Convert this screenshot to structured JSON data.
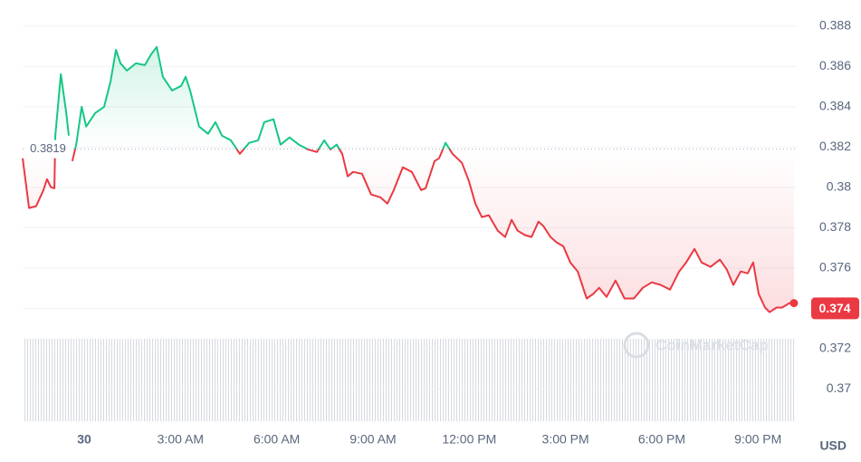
{
  "chart_data": {
    "type": "line",
    "currency": "USD",
    "watermark": "CoinMarketCap",
    "baseline": 0.3819,
    "current_price": 0.374,
    "up_color": "#16c784",
    "down_color": "#ea3943",
    "xlim": [
      -1.92,
      22.15
    ],
    "xticks": [
      {
        "value": 0,
        "label": "30"
      },
      {
        "value": 3,
        "label": "3:00 AM"
      },
      {
        "value": 6,
        "label": "6:00 AM"
      },
      {
        "value": 9,
        "label": "9:00 AM"
      },
      {
        "value": 12,
        "label": "12:00 PM"
      },
      {
        "value": 15,
        "label": "3:00 PM"
      },
      {
        "value": 18,
        "label": "6:00 PM"
      },
      {
        "value": 21,
        "label": "9:00 PM"
      }
    ],
    "ylim": [
      0.3684,
      0.3893
    ],
    "yticks": [
      0.37,
      0.372,
      0.374,
      0.376,
      0.378,
      0.38,
      0.382,
      0.384,
      0.386,
      0.388
    ],
    "grid": true,
    "x": [
      -1.92,
      -1.72,
      -1.5,
      -1.27,
      -1.16,
      -1.04,
      -0.93,
      -0.9,
      -0.73,
      -0.56,
      -0.48,
      -0.42,
      -0.37,
      -0.25,
      -0.08,
      0.06,
      0.34,
      0.62,
      0.82,
      0.99,
      1.13,
      1.33,
      1.61,
      1.89,
      2.09,
      2.26,
      2.45,
      2.74,
      3.02,
      3.16,
      3.3,
      3.58,
      3.86,
      4.09,
      4.29,
      4.57,
      4.85,
      5.14,
      5.42,
      5.61,
      5.9,
      6.12,
      6.4,
      6.69,
      6.97,
      7.25,
      7.48,
      7.67,
      7.87,
      8.04,
      8.21,
      8.38,
      8.66,
      8.94,
      9.23,
      9.45,
      9.65,
      9.93,
      10.21,
      10.5,
      10.64,
      10.92,
      11.06,
      11.26,
      11.48,
      11.77,
      11.99,
      12.19,
      12.39,
      12.61,
      12.89,
      13.12,
      13.32,
      13.51,
      13.74,
      13.94,
      14.16,
      14.31,
      14.53,
      14.73,
      14.93,
      15.15,
      15.38,
      15.66,
      15.86,
      16.05,
      16.28,
      16.56,
      16.84,
      17.13,
      17.41,
      17.69,
      17.97,
      18.26,
      18.54,
      18.76,
      19.02,
      19.24,
      19.52,
      19.81,
      20.03,
      20.23,
      20.46,
      20.68,
      20.85,
      21.02,
      21.22,
      21.36,
      21.58,
      21.75,
      21.98,
      22.12
    ],
    "values": [
      0.38145,
      0.37898,
      0.37907,
      0.37987,
      0.38041,
      0.38001,
      0.37996,
      0.38257,
      0.38562,
      0.38369,
      0.38257,
      null,
      0.38131,
      0.38212,
      0.384,
      0.38302,
      0.38369,
      0.384,
      0.38526,
      0.38683,
      0.38616,
      0.3858,
      0.38616,
      0.38607,
      0.38661,
      0.38697,
      0.38549,
      0.38481,
      0.38504,
      0.38549,
      0.38481,
      0.38302,
      0.38266,
      0.38324,
      0.38257,
      0.38234,
      0.38167,
      0.38221,
      0.38234,
      0.38324,
      0.38338,
      0.38212,
      0.38248,
      0.38212,
      0.38189,
      0.38176,
      0.38234,
      0.38189,
      0.38212,
      0.38167,
      0.38055,
      0.38077,
      0.38068,
      0.37965,
      0.37951,
      0.3792,
      0.37987,
      0.381,
      0.38077,
      0.37987,
      0.37996,
      0.38131,
      0.38145,
      0.38221,
      0.38167,
      0.38122,
      0.38032,
      0.3792,
      0.37853,
      0.37862,
      0.37785,
      0.37754,
      0.37839,
      0.37785,
      0.37763,
      0.37754,
      0.3783,
      0.37808,
      0.37754,
      0.37727,
      0.37709,
      0.37628,
      0.37583,
      0.37449,
      0.37471,
      0.37502,
      0.37457,
      0.37538,
      0.37449,
      0.37449,
      0.37502,
      0.37529,
      0.37516,
      0.37493,
      0.37583,
      0.37628,
      0.37695,
      0.37628,
      0.37606,
      0.37642,
      0.37592,
      0.37516,
      0.37583,
      0.37574,
      0.37628,
      0.37471,
      0.37404,
      0.37381,
      0.37404,
      0.37404,
      0.37426,
      0.37426
    ]
  }
}
